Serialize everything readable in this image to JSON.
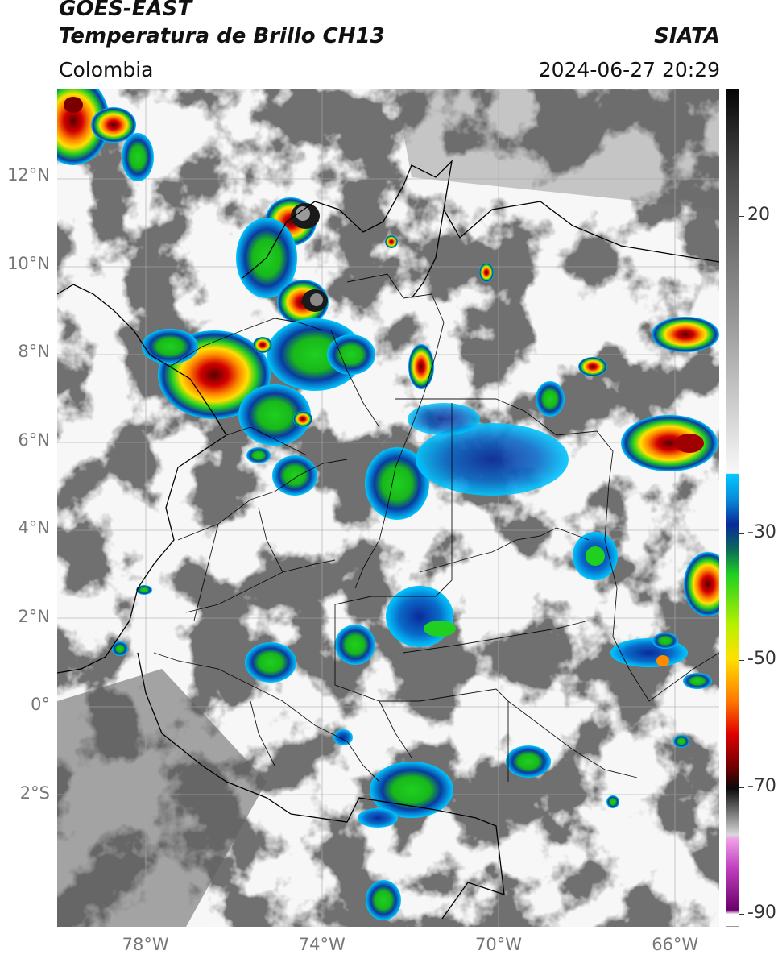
{
  "header": {
    "satellite": "GOES-EAST",
    "product": "Temperatura de Brillo CH13",
    "brand": "SIATA",
    "region": "Colombia",
    "datetime": "2024-06-27 20:29"
  },
  "map": {
    "lat_labels": [
      {
        "lat": 12,
        "text": "12°N"
      },
      {
        "lat": 10,
        "text": "10°N"
      },
      {
        "lat": 8,
        "text": "8°N"
      },
      {
        "lat": 6,
        "text": "6°N"
      },
      {
        "lat": 4,
        "text": "4°N"
      },
      {
        "lat": 2,
        "text": "2°N"
      },
      {
        "lat": 0,
        "text": "0°"
      },
      {
        "lat": -2,
        "text": "2°S"
      }
    ],
    "lon_labels": [
      {
        "lon": -78,
        "text": "78°W"
      },
      {
        "lon": -74,
        "text": "74°W"
      },
      {
        "lon": -70,
        "text": "70°W"
      },
      {
        "lon": -66,
        "text": "66°W"
      }
    ],
    "extent": {
      "lon": [
        -80,
        -65
      ],
      "lat": [
        -5,
        14
      ]
    }
  },
  "colorbar": {
    "ticks": [
      {
        "value": 20,
        "text": "20"
      },
      {
        "value": -30,
        "text": "-30"
      },
      {
        "value": -50,
        "text": "-50"
      },
      {
        "value": -70,
        "text": "-70"
      },
      {
        "value": -90,
        "text": "-90"
      }
    ],
    "range": [
      -92,
      40
    ],
    "colors": {
      "warm_gray": "#6e6e6e",
      "light_gray": "#f2f2f2",
      "cyan": "#00c8ff",
      "blue": "#0a2a9a",
      "green": "#20d020",
      "yellow": "#ffe100",
      "orange": "#ff7a00",
      "red": "#e00000",
      "dark_red": "#700000",
      "black": "#0a0a0a",
      "magenta": "#e060d0",
      "purple": "#6a006a"
    }
  }
}
